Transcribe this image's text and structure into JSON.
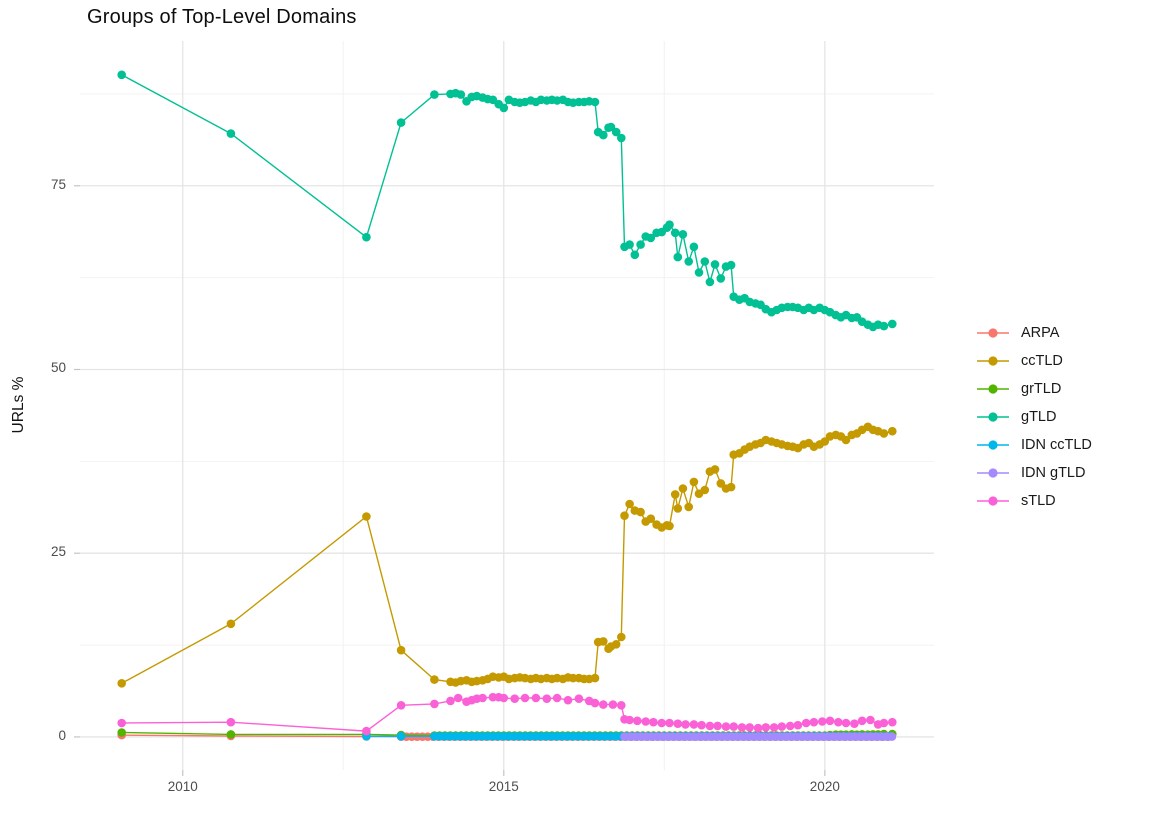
{
  "title": "Groups of Top-Level Domains",
  "y_axis_label": "URLs %",
  "chart_data": {
    "type": "line",
    "title": "Groups of Top-Level Domains",
    "xlabel": "",
    "ylabel": "URLs %",
    "grid": true,
    "legend_position": "right",
    "x_range": [
      2008.4,
      2021.7
    ],
    "y_range": [
      -4.5,
      94.7
    ],
    "x_ticks": [
      2010,
      2015,
      2020
    ],
    "x_tick_labels": [
      "2010",
      "2015",
      "2020"
    ],
    "x_minor_ticks": [
      2012.5,
      2017.5
    ],
    "y_ticks": [
      0,
      25,
      50,
      75
    ],
    "y_tick_labels": [
      "0",
      "25",
      "50",
      "75"
    ],
    "y_minor_ticks": [
      12.5,
      37.5,
      62.5,
      87.5
    ],
    "series": [
      {
        "name": "ARPA",
        "color": "#F8766D",
        "points": [
          [
            2009.05,
            0.25
          ],
          [
            2010.75,
            0.12
          ],
          [
            2012.86,
            0.06
          ]
        ],
        "dense": {
          "x0": 2013.4,
          "dx": 0.0833,
          "n": 92,
          "fill": 0.03
        }
      },
      {
        "name": "ccTLD",
        "color": "#C49A00",
        "points": [
          [
            2009.05,
            7.3
          ],
          [
            2010.75,
            15.4
          ],
          [
            2012.86,
            30.0
          ],
          [
            2013.4,
            11.8
          ],
          [
            2013.92,
            7.8
          ],
          [
            2014.17,
            7.5
          ],
          [
            2014.25,
            7.4
          ],
          [
            2014.33,
            7.6
          ],
          [
            2014.42,
            7.7
          ],
          [
            2014.5,
            7.5
          ],
          [
            2014.58,
            7.6
          ],
          [
            2014.67,
            7.7
          ],
          [
            2014.75,
            7.9
          ],
          [
            2014.83,
            8.2
          ],
          [
            2014.92,
            8.1
          ],
          [
            2015.0,
            8.2
          ],
          [
            2015.08,
            7.9
          ],
          [
            2015.17,
            8.0
          ],
          [
            2015.25,
            8.1
          ],
          [
            2015.33,
            8.0
          ],
          [
            2015.42,
            7.9
          ],
          [
            2015.5,
            8.0
          ],
          [
            2015.58,
            7.9
          ],
          [
            2015.67,
            8.0
          ],
          [
            2015.75,
            7.9
          ],
          [
            2015.83,
            8.0
          ],
          [
            2015.92,
            7.9
          ],
          [
            2016.0,
            8.1
          ],
          [
            2016.08,
            8.0
          ],
          [
            2016.17,
            8.0
          ],
          [
            2016.25,
            7.9
          ],
          [
            2016.33,
            7.9
          ],
          [
            2016.42,
            8.0
          ],
          [
            2016.47,
            12.9
          ],
          [
            2016.55,
            13.0
          ],
          [
            2016.63,
            12.0
          ],
          [
            2016.67,
            12.3
          ],
          [
            2016.75,
            12.6
          ],
          [
            2016.83,
            13.6
          ],
          [
            2016.88,
            30.1
          ],
          [
            2016.96,
            31.7
          ],
          [
            2017.04,
            30.8
          ],
          [
            2017.13,
            30.6
          ],
          [
            2017.21,
            29.3
          ],
          [
            2017.29,
            29.7
          ],
          [
            2017.38,
            28.9
          ],
          [
            2017.46,
            28.5
          ],
          [
            2017.54,
            28.8
          ],
          [
            2017.58,
            28.7
          ],
          [
            2017.67,
            33.0
          ],
          [
            2017.71,
            31.1
          ],
          [
            2017.79,
            33.8
          ],
          [
            2017.88,
            31.3
          ],
          [
            2017.96,
            34.7
          ],
          [
            2018.04,
            33.1
          ],
          [
            2018.13,
            33.6
          ],
          [
            2018.21,
            36.1
          ],
          [
            2018.29,
            36.4
          ],
          [
            2018.38,
            34.5
          ],
          [
            2018.46,
            33.8
          ],
          [
            2018.54,
            34.0
          ],
          [
            2018.58,
            38.4
          ],
          [
            2018.67,
            38.6
          ],
          [
            2018.75,
            39.1
          ],
          [
            2018.83,
            39.5
          ],
          [
            2018.92,
            39.8
          ],
          [
            2019.0,
            40.0
          ],
          [
            2019.08,
            40.4
          ],
          [
            2019.17,
            40.2
          ],
          [
            2019.25,
            40.0
          ],
          [
            2019.33,
            39.8
          ],
          [
            2019.42,
            39.6
          ],
          [
            2019.5,
            39.5
          ],
          [
            2019.58,
            39.3
          ],
          [
            2019.67,
            39.8
          ],
          [
            2019.75,
            40.0
          ],
          [
            2019.83,
            39.5
          ],
          [
            2019.92,
            39.8
          ],
          [
            2020.0,
            40.2
          ],
          [
            2020.08,
            40.9
          ],
          [
            2020.17,
            41.1
          ],
          [
            2020.25,
            40.9
          ],
          [
            2020.33,
            40.4
          ],
          [
            2020.42,
            41.1
          ],
          [
            2020.5,
            41.3
          ],
          [
            2020.58,
            41.8
          ],
          [
            2020.67,
            42.2
          ],
          [
            2020.75,
            41.8
          ],
          [
            2020.83,
            41.6
          ],
          [
            2020.92,
            41.3
          ],
          [
            2021.05,
            41.6
          ]
        ]
      },
      {
        "name": "grTLD",
        "color": "#53B400",
        "points": [
          [
            2009.05,
            0.6
          ],
          [
            2010.75,
            0.35
          ],
          [
            2012.86,
            0.35
          ],
          [
            2013.4,
            0.25
          ],
          [
            2013.92,
            0.2
          ],
          [
            2020.08,
            0.25
          ],
          [
            2020.17,
            0.3
          ],
          [
            2020.25,
            0.3
          ],
          [
            2020.33,
            0.3
          ],
          [
            2020.42,
            0.35
          ],
          [
            2020.5,
            0.3
          ],
          [
            2020.58,
            0.35
          ],
          [
            2020.67,
            0.3
          ],
          [
            2020.75,
            0.35
          ],
          [
            2020.83,
            0.35
          ],
          [
            2020.92,
            0.4
          ],
          [
            2021.05,
            0.4
          ]
        ],
        "dense": {
          "x0": 2014.0,
          "dx": 0.0833,
          "n": 73,
          "fill": 0.2
        }
      },
      {
        "name": "gTLD",
        "color": "#00C094",
        "points": [
          [
            2009.05,
            90.1
          ],
          [
            2010.75,
            82.1
          ],
          [
            2012.86,
            68.0
          ],
          [
            2013.4,
            83.6
          ],
          [
            2013.92,
            87.4
          ],
          [
            2014.17,
            87.5
          ],
          [
            2014.25,
            87.6
          ],
          [
            2014.33,
            87.4
          ],
          [
            2014.42,
            86.5
          ],
          [
            2014.5,
            87.1
          ],
          [
            2014.58,
            87.2
          ],
          [
            2014.67,
            87.0
          ],
          [
            2014.75,
            86.8
          ],
          [
            2014.83,
            86.7
          ],
          [
            2014.92,
            86.1
          ],
          [
            2015.0,
            85.6
          ],
          [
            2015.08,
            86.7
          ],
          [
            2015.17,
            86.4
          ],
          [
            2015.25,
            86.3
          ],
          [
            2015.33,
            86.4
          ],
          [
            2015.42,
            86.6
          ],
          [
            2015.5,
            86.4
          ],
          [
            2015.58,
            86.7
          ],
          [
            2015.67,
            86.6
          ],
          [
            2015.75,
            86.7
          ],
          [
            2015.83,
            86.6
          ],
          [
            2015.92,
            86.7
          ],
          [
            2016.0,
            86.4
          ],
          [
            2016.08,
            86.3
          ],
          [
            2016.17,
            86.4
          ],
          [
            2016.25,
            86.4
          ],
          [
            2016.33,
            86.5
          ],
          [
            2016.42,
            86.4
          ],
          [
            2016.47,
            82.3
          ],
          [
            2016.55,
            81.9
          ],
          [
            2016.63,
            82.9
          ],
          [
            2016.67,
            83.0
          ],
          [
            2016.75,
            82.3
          ],
          [
            2016.83,
            81.5
          ],
          [
            2016.88,
            66.7
          ],
          [
            2016.96,
            67.0
          ],
          [
            2017.04,
            65.6
          ],
          [
            2017.13,
            67.0
          ],
          [
            2017.21,
            68.1
          ],
          [
            2017.29,
            67.9
          ],
          [
            2017.38,
            68.6
          ],
          [
            2017.46,
            68.7
          ],
          [
            2017.54,
            69.3
          ],
          [
            2017.58,
            69.7
          ],
          [
            2017.67,
            68.6
          ],
          [
            2017.71,
            65.3
          ],
          [
            2017.79,
            68.4
          ],
          [
            2017.88,
            64.7
          ],
          [
            2017.96,
            66.7
          ],
          [
            2018.04,
            63.2
          ],
          [
            2018.13,
            64.7
          ],
          [
            2018.21,
            61.9
          ],
          [
            2018.29,
            64.3
          ],
          [
            2018.38,
            62.4
          ],
          [
            2018.46,
            64.0
          ],
          [
            2018.54,
            64.2
          ],
          [
            2018.58,
            59.9
          ],
          [
            2018.67,
            59.5
          ],
          [
            2018.75,
            59.7
          ],
          [
            2018.83,
            59.2
          ],
          [
            2018.92,
            59.0
          ],
          [
            2019.0,
            58.8
          ],
          [
            2019.08,
            58.2
          ],
          [
            2019.17,
            57.8
          ],
          [
            2019.25,
            58.1
          ],
          [
            2019.33,
            58.4
          ],
          [
            2019.42,
            58.5
          ],
          [
            2019.5,
            58.5
          ],
          [
            2019.58,
            58.4
          ],
          [
            2019.67,
            58.1
          ],
          [
            2019.75,
            58.4
          ],
          [
            2019.83,
            58.1
          ],
          [
            2019.92,
            58.4
          ],
          [
            2020.0,
            58.1
          ],
          [
            2020.08,
            57.8
          ],
          [
            2020.17,
            57.4
          ],
          [
            2020.25,
            57.1
          ],
          [
            2020.33,
            57.4
          ],
          [
            2020.42,
            57.0
          ],
          [
            2020.5,
            57.1
          ],
          [
            2020.58,
            56.5
          ],
          [
            2020.67,
            56.1
          ],
          [
            2020.75,
            55.8
          ],
          [
            2020.83,
            56.1
          ],
          [
            2020.92,
            55.9
          ],
          [
            2021.05,
            56.2
          ]
        ]
      },
      {
        "name": "IDN ccTLD",
        "color": "#00B6EB",
        "points": [
          [
            2012.86,
            0.1
          ],
          [
            2013.4,
            0.08
          ]
        ],
        "dense": {
          "x0": 2013.92,
          "dx": 0.0833,
          "n": 86,
          "fill": 0.08
        }
      },
      {
        "name": "IDN gTLD",
        "color": "#A58AFF",
        "points": [],
        "dense": {
          "x0": 2016.88,
          "dx": 0.0833,
          "n": 51,
          "fill": 0.04
        }
      },
      {
        "name": "sTLD",
        "color": "#FB61D7",
        "points": [
          [
            2009.05,
            1.9
          ],
          [
            2010.75,
            2.0
          ],
          [
            2012.86,
            0.8
          ],
          [
            2013.4,
            4.3
          ],
          [
            2013.92,
            4.5
          ],
          [
            2014.17,
            4.9
          ],
          [
            2014.29,
            5.3
          ],
          [
            2014.42,
            4.8
          ],
          [
            2014.5,
            5.0
          ],
          [
            2014.58,
            5.2
          ],
          [
            2014.67,
            5.3
          ],
          [
            2014.83,
            5.4
          ],
          [
            2014.92,
            5.4
          ],
          [
            2015.0,
            5.3
          ],
          [
            2015.17,
            5.2
          ],
          [
            2015.33,
            5.3
          ],
          [
            2015.5,
            5.3
          ],
          [
            2015.67,
            5.2
          ],
          [
            2015.83,
            5.3
          ],
          [
            2016.0,
            5.0
          ],
          [
            2016.17,
            5.2
          ],
          [
            2016.33,
            4.9
          ],
          [
            2016.42,
            4.6
          ],
          [
            2016.55,
            4.4
          ],
          [
            2016.7,
            4.4
          ],
          [
            2016.83,
            4.3
          ],
          [
            2016.88,
            2.4
          ],
          [
            2016.96,
            2.3
          ],
          [
            2017.08,
            2.2
          ],
          [
            2017.21,
            2.1
          ],
          [
            2017.33,
            2.0
          ],
          [
            2017.46,
            1.9
          ],
          [
            2017.58,
            1.9
          ],
          [
            2017.71,
            1.8
          ],
          [
            2017.83,
            1.7
          ],
          [
            2017.96,
            1.7
          ],
          [
            2018.08,
            1.6
          ],
          [
            2018.21,
            1.5
          ],
          [
            2018.33,
            1.5
          ],
          [
            2018.46,
            1.4
          ],
          [
            2018.58,
            1.4
          ],
          [
            2018.71,
            1.3
          ],
          [
            2018.83,
            1.3
          ],
          [
            2018.96,
            1.2
          ],
          [
            2019.08,
            1.3
          ],
          [
            2019.21,
            1.3
          ],
          [
            2019.33,
            1.4
          ],
          [
            2019.46,
            1.5
          ],
          [
            2019.58,
            1.6
          ],
          [
            2019.71,
            1.9
          ],
          [
            2019.83,
            2.0
          ],
          [
            2019.96,
            2.1
          ],
          [
            2020.08,
            2.2
          ],
          [
            2020.21,
            2.0
          ],
          [
            2020.33,
            1.9
          ],
          [
            2020.46,
            1.8
          ],
          [
            2020.58,
            2.2
          ],
          [
            2020.71,
            2.3
          ],
          [
            2020.83,
            1.7
          ],
          [
            2020.92,
            1.9
          ],
          [
            2021.05,
            2.0
          ]
        ]
      }
    ]
  }
}
